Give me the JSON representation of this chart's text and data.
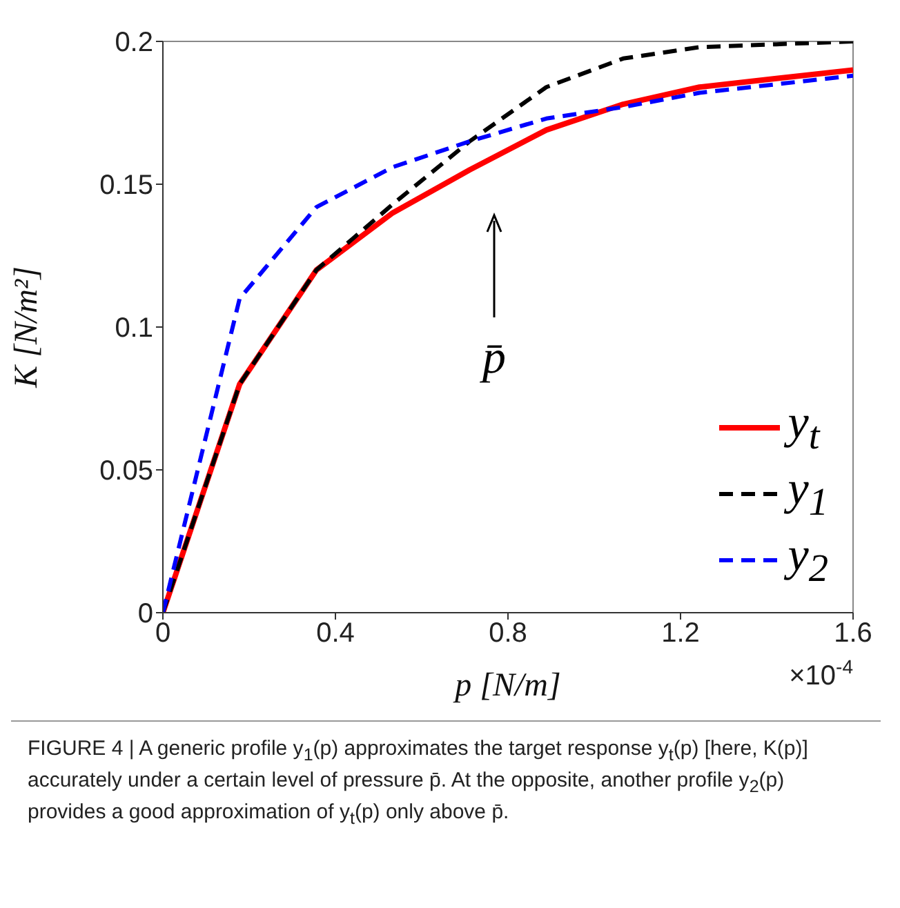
{
  "chart_data": {
    "type": "line",
    "xlabel": "p [N/m]",
    "ylabel": "K [N/m²]",
    "x": [
      0,
      0.178,
      0.356,
      0.533,
      0.711,
      0.889,
      1.067,
      1.244,
      1.422,
      1.6
    ],
    "series": [
      {
        "name": "y$_{t}$",
        "color": "#ff0000",
        "line_style": "solid",
        "values": [
          0,
          0.08,
          0.12,
          0.14,
          0.155,
          0.169,
          0.178,
          0.184,
          0.187,
          0.19
        ]
      },
      {
        "name": "y$_{1}$",
        "color": "#000000",
        "line_style": "dashed",
        "values": [
          0,
          0.08,
          0.12,
          0.143,
          0.165,
          0.184,
          0.194,
          0.198,
          0.199,
          0.2
        ]
      },
      {
        "name": "y$_{2}$",
        "color": "#0000ff",
        "line_style": "dashed",
        "values": [
          0,
          0.11,
          0.142,
          0.156,
          0.165,
          0.173,
          0.177,
          0.182,
          0.185,
          0.188
        ]
      }
    ],
    "xlim": [
      0,
      1.6
    ],
    "xticks": [
      0,
      0.4,
      0.8,
      1.2,
      1.6
    ],
    "ylim": [
      0,
      0.2
    ],
    "yticks": [
      0,
      0.05,
      0.1,
      0.15,
      0.2
    ],
    "grid": false,
    "legend": "bottom right",
    "marker": "none",
    "annotations": [
      "p̄",
      "×10$^{-4}$",
      "FIGURE 4 | A generic profile y$_{1}$(p) approximates the target response y$_{t}$(p) [here, K(p)] accurately under a certain level of pressure p̄. At the opposite, another profile y$_{2}$(p) provides a good approximation of y$_{t}$(p) only above p̄."
    ]
  }
}
